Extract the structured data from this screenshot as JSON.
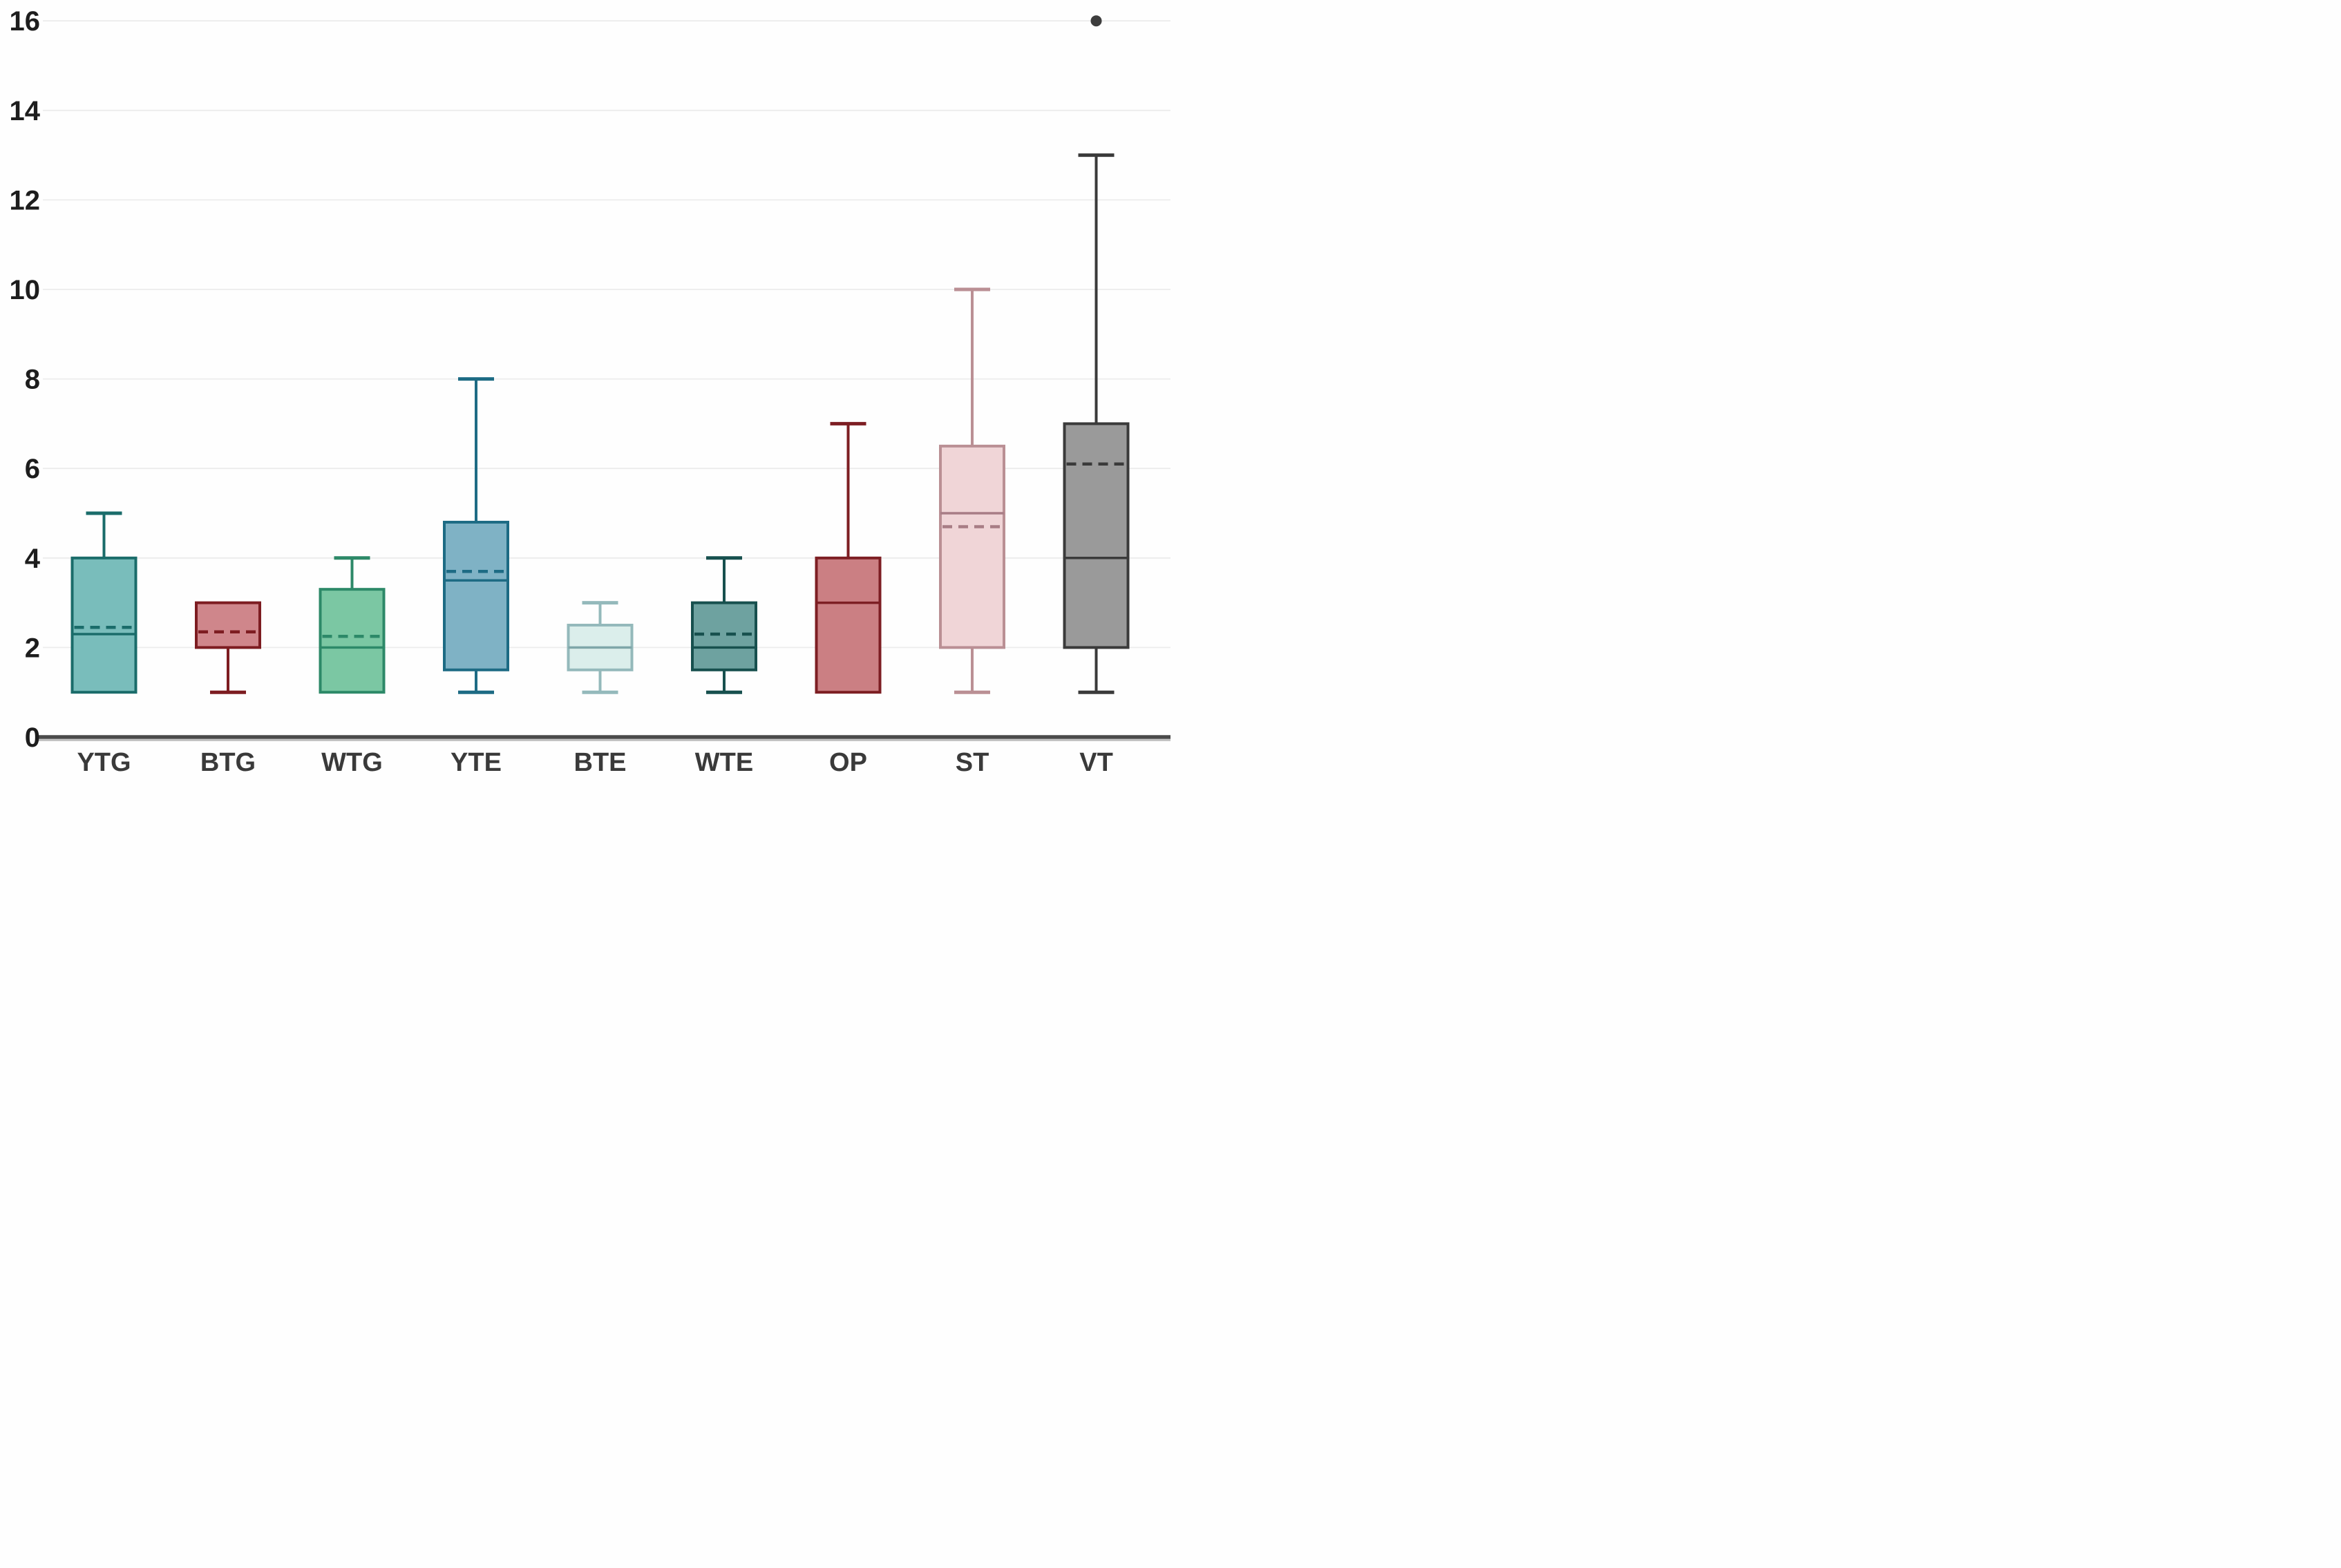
{
  "figure": {
    "background": "#fefefe",
    "grid_color": "#ececec",
    "axis_line_color": "#4a4a4a",
    "axis_shadow_color": "#c2c2c2",
    "outlier_color": "#3d3d3d"
  },
  "chart_data": {
    "type": "boxplot",
    "title": "",
    "xlabel": "",
    "ylabel": "",
    "ylim": [
      0,
      16.6
    ],
    "yticks": [
      0,
      2,
      4,
      6,
      8,
      10,
      12,
      14,
      16
    ],
    "grid": "horizontal light gray lines at every tick",
    "legend": "none",
    "categories": [
      "YTG",
      "BTG",
      "WTG",
      "YTE",
      "BTE",
      "WTE",
      "OP",
      "ST",
      "VT"
    ],
    "series": [
      {
        "label": "YTG",
        "min": 1,
        "q1": 1,
        "median": 2.3,
        "mean": 2.45,
        "q3": 4,
        "max": 5,
        "outliers": [],
        "fill": "#79bdbb",
        "stroke": "#1a6c6a"
      },
      {
        "label": "BTG",
        "min": 1,
        "q1": 2,
        "median": null,
        "mean": 2.35,
        "q3": 3,
        "max": 3,
        "outliers": [],
        "fill": "#cf868b",
        "stroke": "#7d1c21"
      },
      {
        "label": "WTG",
        "min": 1,
        "q1": 1,
        "median": 2,
        "mean": 2.25,
        "q3": 3.3,
        "max": 4,
        "outliers": [],
        "fill": "#7bc7a3",
        "stroke": "#2d8968"
      },
      {
        "label": "YTE",
        "min": 1,
        "q1": 1.5,
        "median": 3.5,
        "mean": 3.7,
        "q3": 4.8,
        "max": 8,
        "outliers": [],
        "fill": "#7fb2c5",
        "stroke": "#1d6b84"
      },
      {
        "label": "BTE",
        "min": 1,
        "q1": 1.5,
        "median": 2,
        "mean": null,
        "q3": 2.5,
        "max": 3,
        "outliers": [],
        "fill": "#dbeeeb",
        "stroke": "#94b9bb",
        "line": "#7fa6a9"
      },
      {
        "label": "WTE",
        "min": 1,
        "q1": 1.5,
        "median": 2,
        "mean": 2.3,
        "q3": 3,
        "max": 4,
        "outliers": [],
        "fill": "#6ea2a0",
        "stroke": "#17504e"
      },
      {
        "label": "OP",
        "min": 1,
        "q1": 1,
        "median": 3,
        "mean": null,
        "q3": 4,
        "max": 7,
        "outliers": [],
        "fill": "#cb7f83",
        "stroke": "#7d1e23"
      },
      {
        "label": "ST",
        "min": 1,
        "q1": 2,
        "median": 5,
        "mean": 4.7,
        "q3": 6.5,
        "max": 10,
        "outliers": [],
        "fill": "#f0d5d7",
        "stroke": "#ba8f94",
        "line": "#a87d85"
      },
      {
        "label": "VT",
        "min": 1,
        "q1": 2,
        "median": 4,
        "mean": 6.1,
        "q3": 7,
        "max": 13,
        "outliers": [
          16
        ],
        "fill": "#9a9a9a",
        "stroke": "#3a3a3a"
      }
    ]
  }
}
